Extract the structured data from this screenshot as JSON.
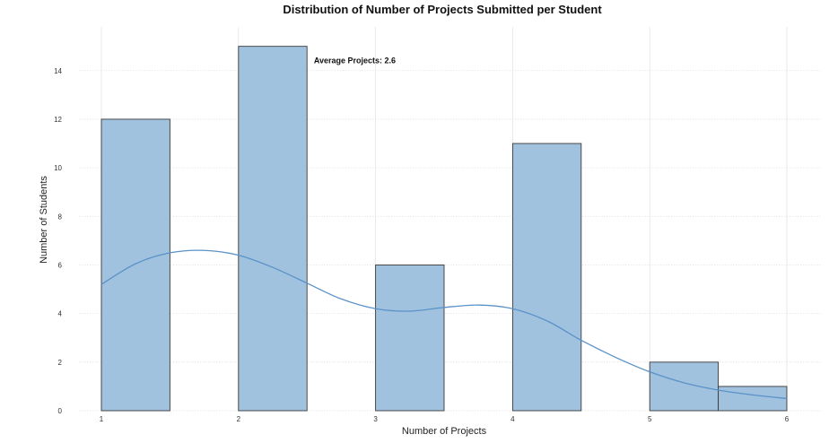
{
  "chart_data": {
    "type": "bar",
    "title": "Distribution of Number of Projects Submitted per Student",
    "xlabel": "Number of Projects",
    "ylabel": "Number of Students",
    "xlim": [
      1,
      6
    ],
    "ylim": [
      0,
      15.8
    ],
    "x_ticks": [
      1,
      2,
      3,
      4,
      5,
      6
    ],
    "y_ticks": [
      0,
      2,
      4,
      6,
      8,
      10,
      12,
      14
    ],
    "bin_width": 0.5,
    "bins": [
      {
        "start": 1.0,
        "end": 1.5,
        "count": 12
      },
      {
        "start": 1.5,
        "end": 2.0,
        "count": 0
      },
      {
        "start": 2.0,
        "end": 2.5,
        "count": 15
      },
      {
        "start": 2.5,
        "end": 3.0,
        "count": 0
      },
      {
        "start": 3.0,
        "end": 3.5,
        "count": 6
      },
      {
        "start": 3.5,
        "end": 4.0,
        "count": 0
      },
      {
        "start": 4.0,
        "end": 4.5,
        "count": 11
      },
      {
        "start": 4.5,
        "end": 5.0,
        "count": 0
      },
      {
        "start": 5.0,
        "end": 5.5,
        "count": 2
      },
      {
        "start": 5.5,
        "end": 6.0,
        "count": 1
      }
    ],
    "kde": {
      "x": [
        1.0,
        1.25,
        1.5,
        1.75,
        2.0,
        2.25,
        2.5,
        2.75,
        3.0,
        3.25,
        3.5,
        3.75,
        4.0,
        4.25,
        4.5,
        4.75,
        5.0,
        5.25,
        5.5,
        5.75,
        6.0
      ],
      "y": [
        5.2,
        6.05,
        6.5,
        6.6,
        6.4,
        5.9,
        5.25,
        4.6,
        4.2,
        4.1,
        4.25,
        4.35,
        4.2,
        3.7,
        2.9,
        2.2,
        1.6,
        1.15,
        0.85,
        0.65,
        0.5
      ]
    },
    "annotation": {
      "text": "Average Projects: 2.6",
      "x": 2.55,
      "y": 14.3
    },
    "grid": true,
    "colors": {
      "bar_fill": "#a0c2df",
      "bar_edge": "#3a3a3a",
      "kde_line": "#5a92c8"
    }
  }
}
